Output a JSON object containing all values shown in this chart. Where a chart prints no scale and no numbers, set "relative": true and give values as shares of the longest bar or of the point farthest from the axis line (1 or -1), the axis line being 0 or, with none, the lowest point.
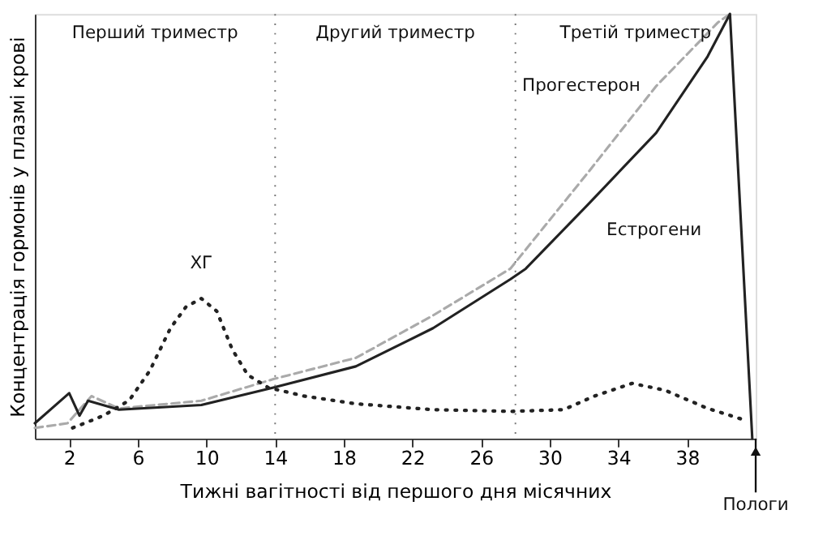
{
  "chart_data": {
    "type": "line",
    "relative": true,
    "xlabel": "Тижні вагітності від першого дня місячних",
    "ylabel": "Концентрація гормонів у плазмі крові",
    "xlim": [
      0,
      42
    ],
    "xticks": [
      2,
      6,
      10,
      14,
      18,
      22,
      26,
      30,
      34,
      38
    ],
    "tick_labels": "x",
    "grid": false,
    "series": [
      {
        "name": "Прогестерон",
        "color": "#aaaaaa",
        "line_style": "dashed",
        "x": [
          0,
          1.9,
          3.3,
          4.9,
          9.7,
          13.9,
          18.7,
          23.2,
          27.7,
          28.1,
          32.2,
          36.2,
          39.8,
          40.5
        ],
        "values": [
          0.025,
          0.036,
          0.1,
          0.071,
          0.089,
          0.14,
          0.19,
          0.29,
          0.4,
          0.42,
          0.625,
          0.83,
          0.98,
          1.0
        ]
      },
      {
        "name": "Естрогени",
        "color": "#222222",
        "line_style": "solid",
        "x": [
          0,
          2.0,
          2.6,
          3.1,
          4.9,
          9.7,
          13.9,
          18.7,
          23.2,
          27.7,
          28.6,
          32.2,
          36.2,
          39.2,
          40.5,
          41.8
        ],
        "values": [
          0.036,
          0.107,
          0.054,
          0.089,
          0.068,
          0.079,
          0.12,
          0.17,
          0.26,
          0.375,
          0.4,
          0.55,
          0.72,
          0.9,
          1.0,
          0
        ]
      },
      {
        "name": "ХГ",
        "color": "#222222",
        "line_style": "dotted",
        "x": [
          2.2,
          4,
          5.5,
          6.7,
          7.9,
          8.8,
          9.7,
          10.6,
          11.5,
          12.4,
          13.6,
          15.7,
          18.7,
          23.2,
          27.7,
          30.8,
          32.6,
          34.8,
          36.7,
          39.2,
          41.4
        ],
        "values": [
          0.025,
          0.054,
          0.09,
          0.16,
          0.26,
          0.31,
          0.33,
          0.3,
          0.21,
          0.15,
          0.12,
          0.1,
          0.082,
          0.068,
          0.064,
          0.068,
          0.1,
          0.13,
          0.114,
          0.071,
          0.043
        ]
      }
    ],
    "ref_lines": [
      {
        "axis": "x",
        "value": 14,
        "line_style": "dotted",
        "color": "#777777"
      },
      {
        "axis": "x",
        "value": 28,
        "line_style": "dotted",
        "color": "#777777"
      }
    ],
    "annotations": [
      "Перший триместр",
      "Другий триместр",
      "Третій триместр",
      {
        "text": "Пологи",
        "x": 42,
        "y": 0
      }
    ]
  }
}
